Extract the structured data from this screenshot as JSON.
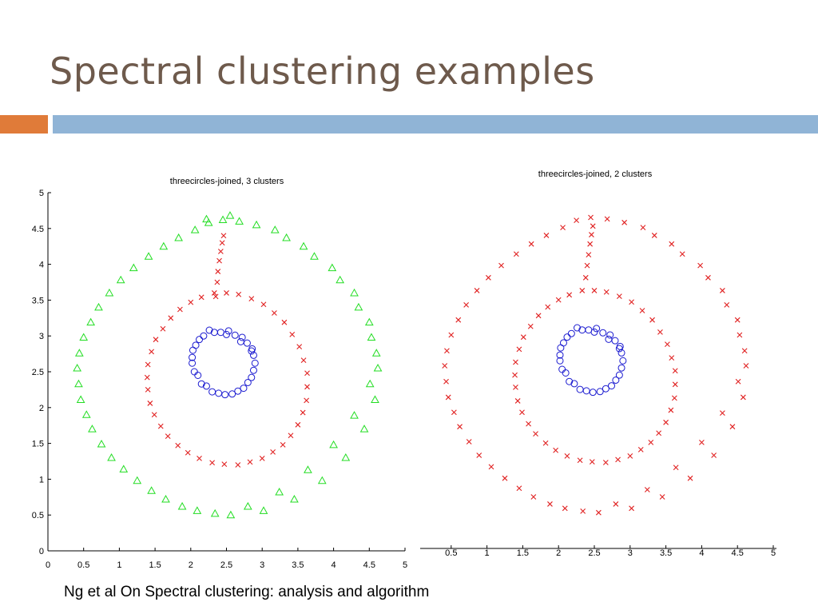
{
  "slide": {
    "title": "Spectral clustering examples",
    "caption": "Ng et al On Spectral clustering: analysis and algorithm",
    "accent_colors": {
      "title": "#6e5a4c",
      "bar_left": "#e07b39",
      "bar_right": "#90b4d6"
    }
  },
  "chart_data": [
    {
      "type": "scatter",
      "title": "threecircles-joined, 3 clusters",
      "xlabel": "",
      "ylabel": "",
      "xlim": [
        0,
        5
      ],
      "ylim": [
        0,
        5
      ],
      "xticks": [
        0,
        0.5,
        1,
        1.5,
        2,
        2.5,
        3,
        3.5,
        4,
        4.5,
        5
      ],
      "xtick_labels": [
        "0",
        "0.5",
        "1",
        "1.5",
        "2",
        "2.5",
        "3",
        "3.5",
        "4",
        "4.5",
        "5"
      ],
      "yticks": [
        0,
        0.5,
        1,
        1.5,
        2,
        2.5,
        3,
        3.5,
        4,
        4.5,
        5
      ],
      "ytick_labels": [
        "0",
        "0.5",
        "1",
        "1.5",
        "2",
        "2.5",
        "3",
        "3.5",
        "4",
        "4.5",
        "5"
      ],
      "series": [
        {
          "name": "outer ring",
          "marker": "triangle",
          "color": "#22dd22",
          "x": [
            2.45,
            2.92,
            3.34,
            3.73,
            4.09,
            4.35,
            4.53,
            4.62,
            4.58,
            4.43,
            4.17,
            3.84,
            3.45,
            3.02,
            2.56,
            2.09,
            1.65,
            1.25,
            0.89,
            0.62,
            0.46,
            0.41,
            0.5,
            0.71,
            1.02,
            1.41,
            1.83,
            2.06,
            2.25,
            2.68,
            3.18,
            3.58,
            3.98,
            4.29,
            4.5,
            4.6,
            4.51,
            4.29,
            4.0,
            3.64,
            3.24,
            2.8,
            2.34,
            1.88,
            1.45,
            1.06,
            0.75,
            0.54,
            0.43,
            0.44,
            0.6,
            0.86,
            1.2,
            1.62,
            2.22,
            2.55
          ],
          "y": [
            4.62,
            4.55,
            4.37,
            4.11,
            3.78,
            3.4,
            2.98,
            2.55,
            2.11,
            1.7,
            1.3,
            0.98,
            0.72,
            0.56,
            0.5,
            0.56,
            0.72,
            0.98,
            1.3,
            1.7,
            2.11,
            2.55,
            2.98,
            3.4,
            3.78,
            4.11,
            4.37,
            4.48,
            4.58,
            4.6,
            4.48,
            4.25,
            3.95,
            3.6,
            3.19,
            2.76,
            2.33,
            1.89,
            1.48,
            1.13,
            0.82,
            0.62,
            0.52,
            0.62,
            0.84,
            1.14,
            1.49,
            1.9,
            2.33,
            2.76,
            3.19,
            3.6,
            3.95,
            4.25,
            4.63,
            4.68
          ]
        },
        {
          "name": "middle ring",
          "marker": "x",
          "color": "#e02020",
          "x": [
            2.5,
            2.85,
            3.17,
            3.42,
            3.58,
            3.63,
            3.57,
            3.4,
            3.15,
            2.83,
            2.47,
            2.12,
            1.82,
            1.58,
            1.43,
            1.39,
            1.45,
            1.61,
            1.85,
            2.15,
            2.67,
            3.02,
            3.31,
            3.52,
            3.63,
            3.62,
            3.5,
            3.29,
            3.0,
            2.66,
            2.3,
            1.96,
            1.68,
            1.49,
            1.4,
            1.4,
            1.51,
            1.72,
            2.0,
            2.33,
            2.35,
            2.37,
            2.38,
            2.4,
            2.42,
            2.44,
            2.46
          ],
          "y": [
            3.6,
            3.52,
            3.32,
            3.02,
            2.66,
            2.29,
            1.93,
            1.61,
            1.38,
            1.24,
            1.21,
            1.29,
            1.47,
            1.74,
            2.06,
            2.42,
            2.78,
            3.1,
            3.37,
            3.54,
            3.58,
            3.44,
            3.19,
            2.85,
            2.48,
            2.1,
            1.76,
            1.48,
            1.29,
            1.2,
            1.23,
            1.37,
            1.6,
            1.9,
            2.25,
            2.6,
            2.95,
            3.25,
            3.47,
            3.6,
            3.55,
            3.75,
            3.9,
            4.05,
            4.18,
            4.3,
            4.4
          ]
        },
        {
          "name": "inner ring",
          "marker": "circle",
          "color": "#1a1ad0",
          "x": [
            2.42,
            2.62,
            2.79,
            2.88,
            2.88,
            2.8,
            2.66,
            2.48,
            2.3,
            2.15,
            2.05,
            2.02,
            2.07,
            2.18,
            2.33,
            2.53,
            2.72,
            2.86,
            2.9,
            2.85,
            2.74,
            2.58,
            2.39,
            2.22,
            2.1,
            2.02,
            2.03,
            2.12,
            2.26,
            2.5,
            2.7,
            2.85
          ],
          "y": [
            3.05,
            3.01,
            2.9,
            2.73,
            2.52,
            2.35,
            2.23,
            2.18,
            2.22,
            2.33,
            2.5,
            2.7,
            2.87,
            3.0,
            3.05,
            3.07,
            2.98,
            2.82,
            2.62,
            2.42,
            2.27,
            2.19,
            2.2,
            2.3,
            2.45,
            2.62,
            2.8,
            2.95,
            3.08,
            3.02,
            2.92,
            2.79
          ]
        }
      ]
    },
    {
      "type": "scatter",
      "title": "threecircles-joined, 2 clusters",
      "xlabel": "",
      "ylabel": "",
      "xlim": [
        0,
        5
      ],
      "ylim": [
        0,
        5
      ],
      "xticks": [
        0.5,
        1,
        1.5,
        2,
        2.5,
        3,
        3.5,
        4,
        4.5,
        5
      ],
      "xtick_labels": [
        "0.5",
        "1",
        "1.5",
        "2",
        "2.5",
        "3",
        "3.5",
        "4",
        "4.5",
        "5"
      ],
      "series": [
        {
          "name": "outer+middle rings",
          "marker": "x",
          "color": "#e02020",
          "x": [
            2.45,
            2.92,
            3.34,
            3.73,
            4.09,
            4.35,
            4.53,
            4.62,
            4.58,
            4.43,
            4.17,
            3.84,
            3.45,
            3.02,
            2.56,
            2.09,
            1.65,
            1.25,
            0.89,
            0.62,
            0.46,
            0.41,
            0.5,
            0.71,
            1.02,
            1.41,
            1.83,
            2.25,
            2.68,
            3.18,
            3.58,
            3.98,
            4.29,
            4.5,
            4.6,
            4.51,
            4.29,
            4.0,
            3.64,
            3.24,
            2.8,
            2.34,
            1.88,
            1.45,
            1.06,
            0.75,
            0.54,
            0.43,
            0.44,
            0.6,
            0.86,
            1.2,
            1.62,
            2.06,
            2.5,
            2.85,
            3.17,
            3.42,
            3.58,
            3.63,
            3.57,
            3.4,
            3.15,
            2.83,
            2.47,
            2.12,
            1.82,
            1.58,
            1.43,
            1.39,
            1.45,
            1.61,
            1.85,
            2.15,
            2.67,
            3.02,
            3.31,
            3.52,
            3.63,
            3.62,
            3.5,
            3.29,
            3.0,
            2.66,
            2.3,
            1.96,
            1.68,
            1.49,
            1.4,
            1.4,
            1.51,
            1.72,
            2.0,
            2.33,
            2.38,
            2.4,
            2.42,
            2.44,
            2.46,
            2.48
          ],
          "y": [
            4.62,
            4.55,
            4.37,
            4.11,
            3.78,
            3.4,
            2.98,
            2.55,
            2.11,
            1.7,
            1.3,
            0.98,
            0.72,
            0.56,
            0.5,
            0.56,
            0.72,
            0.98,
            1.3,
            1.7,
            2.11,
            2.55,
            2.98,
            3.4,
            3.78,
            4.11,
            4.37,
            4.58,
            4.6,
            4.48,
            4.25,
            3.95,
            3.6,
            3.19,
            2.76,
            2.33,
            1.89,
            1.48,
            1.13,
            0.82,
            0.62,
            0.52,
            0.62,
            0.84,
            1.14,
            1.49,
            1.9,
            2.33,
            2.76,
            3.19,
            3.6,
            3.95,
            4.25,
            4.48,
            3.6,
            3.52,
            3.32,
            3.02,
            2.66,
            2.29,
            1.93,
            1.61,
            1.38,
            1.24,
            1.21,
            1.29,
            1.47,
            1.74,
            2.06,
            2.42,
            2.78,
            3.1,
            3.37,
            3.54,
            3.58,
            3.44,
            3.19,
            2.85,
            2.48,
            2.1,
            1.76,
            1.48,
            1.29,
            1.2,
            1.23,
            1.37,
            1.6,
            1.9,
            2.25,
            2.6,
            2.95,
            3.25,
            3.47,
            3.6,
            3.78,
            3.95,
            4.1,
            4.25,
            4.38,
            4.5
          ]
        },
        {
          "name": "inner ring",
          "marker": "circle",
          "color": "#1a1ad0",
          "x": [
            2.42,
            2.62,
            2.79,
            2.88,
            2.88,
            2.8,
            2.66,
            2.48,
            2.3,
            2.15,
            2.05,
            2.02,
            2.07,
            2.18,
            2.33,
            2.53,
            2.72,
            2.86,
            2.9,
            2.85,
            2.74,
            2.58,
            2.39,
            2.22,
            2.1,
            2.02,
            2.03,
            2.12,
            2.26,
            2.5,
            2.7,
            2.85
          ],
          "y": [
            3.05,
            3.01,
            2.9,
            2.73,
            2.52,
            2.35,
            2.23,
            2.18,
            2.22,
            2.33,
            2.5,
            2.7,
            2.87,
            3.0,
            3.05,
            3.07,
            2.98,
            2.82,
            2.62,
            2.42,
            2.27,
            2.19,
            2.2,
            2.3,
            2.45,
            2.62,
            2.8,
            2.95,
            3.08,
            3.02,
            2.92,
            2.79
          ]
        }
      ]
    }
  ]
}
